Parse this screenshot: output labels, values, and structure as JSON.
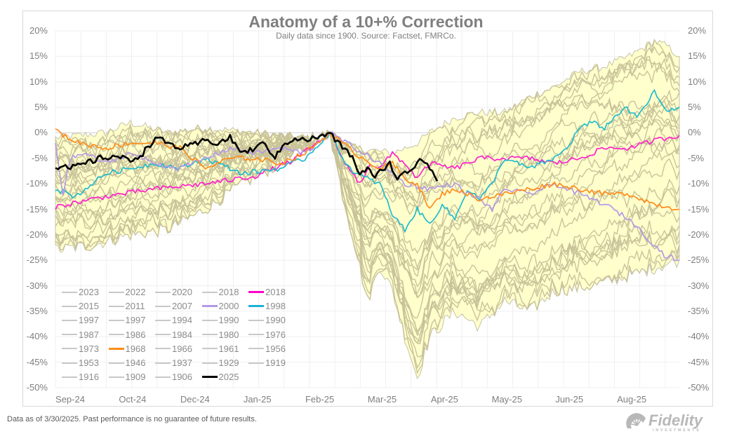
{
  "chart_data": {
    "type": "line",
    "title": "Anatomy of a 10+% Correction",
    "subtitle": "Daily data since 1900.  Source: Factset, FMRCo.",
    "footer": "Data as of 3/30/2025. Past performance is no guarantee of future results.",
    "brand": "Fidelity",
    "brand_sub": "INVESTMENTS",
    "ylim": [
      -50,
      20
    ],
    "y_ticks": [
      "20%",
      "15%",
      "10%",
      "5%",
      "0%",
      "-5%",
      "-10%",
      "-15%",
      "-20%",
      "-25%",
      "-30%",
      "-35%",
      "-40%",
      "-45%",
      "-50%"
    ],
    "x_ticks": [
      "Sep-24",
      "Oct-24",
      "Dec-24",
      "Jan-25",
      "Feb-25",
      "Mar-25",
      "Apr-25",
      "May-25",
      "Jun-25",
      "Aug-25"
    ],
    "x_range_trading_days": [
      0,
      250
    ],
    "peak_day": 110,
    "band_color": "#ffffcc",
    "background_line_color": "#c9c39a",
    "legend": [
      {
        "label": "2023",
        "color": "#c8c8c8"
      },
      {
        "label": "2022",
        "color": "#c8c8c8"
      },
      {
        "label": "2020",
        "color": "#c8c8c8"
      },
      {
        "label": "2018",
        "color": "#c8c8c8"
      },
      {
        "label": "2018",
        "color": "#ff00cc"
      },
      {
        "label": "2015",
        "color": "#c8c8c8"
      },
      {
        "label": "2011",
        "color": "#c8c8c8"
      },
      {
        "label": "2007",
        "color": "#c8c8c8"
      },
      {
        "label": "2000",
        "color": "#b399e6"
      },
      {
        "label": "1998",
        "color": "#1ab2d9"
      },
      {
        "label": "1997",
        "color": "#c8c8c8"
      },
      {
        "label": "1997",
        "color": "#c8c8c8"
      },
      {
        "label": "1994",
        "color": "#c8c8c8"
      },
      {
        "label": "1990",
        "color": "#c8c8c8"
      },
      {
        "label": "1990",
        "color": "#c8c8c8"
      },
      {
        "label": "1987",
        "color": "#c8c8c8"
      },
      {
        "label": "1986",
        "color": "#c8c8c8"
      },
      {
        "label": "1984",
        "color": "#c8c8c8"
      },
      {
        "label": "1980",
        "color": "#c8c8c8"
      },
      {
        "label": "1976",
        "color": "#c8c8c8"
      },
      {
        "label": "1973",
        "color": "#c8c8c8"
      },
      {
        "label": "1968",
        "color": "#ff8c1a"
      },
      {
        "label": "1966",
        "color": "#c8c8c8"
      },
      {
        "label": "1961",
        "color": "#c8c8c8"
      },
      {
        "label": "1956",
        "color": "#c8c8c8"
      },
      {
        "label": "1953",
        "color": "#c8c8c8"
      },
      {
        "label": "1946",
        "color": "#c8c8c8"
      },
      {
        "label": "1937",
        "color": "#c8c8c8"
      },
      {
        "label": "1929",
        "color": "#c8c8c8"
      },
      {
        "label": "1919",
        "color": "#c8c8c8"
      },
      {
        "label": "1916",
        "color": "#c8c8c8"
      },
      {
        "label": "1909",
        "color": "#c8c8c8"
      },
      {
        "label": "1906",
        "color": "#c8c8c8"
      },
      {
        "label": "2025",
        "color": "#000000"
      }
    ],
    "envelope": {
      "upper": [
        [
          0,
          -1
        ],
        [
          20,
          0
        ],
        [
          30,
          2
        ],
        [
          45,
          0
        ],
        [
          60,
          1
        ],
        [
          80,
          0
        ],
        [
          100,
          -1
        ],
        [
          110,
          0
        ],
        [
          120,
          -3
        ],
        [
          135,
          -4
        ],
        [
          145,
          -2
        ],
        [
          150,
          0
        ],
        [
          160,
          3
        ],
        [
          170,
          4
        ],
        [
          180,
          4
        ],
        [
          190,
          7
        ],
        [
          200,
          9
        ],
        [
          210,
          12
        ],
        [
          220,
          13
        ],
        [
          230,
          15
        ],
        [
          240,
          18
        ],
        [
          245,
          17
        ],
        [
          250,
          15
        ]
      ],
      "lower": [
        [
          0,
          -23
        ],
        [
          15,
          -22
        ],
        [
          30,
          -20
        ],
        [
          45,
          -19
        ],
        [
          60,
          -15
        ],
        [
          75,
          -10
        ],
        [
          90,
          -6
        ],
        [
          100,
          -3
        ],
        [
          110,
          0
        ],
        [
          115,
          -12
        ],
        [
          120,
          -22
        ],
        [
          125,
          -33
        ],
        [
          130,
          -26
        ],
        [
          135,
          -31
        ],
        [
          140,
          -40
        ],
        [
          145,
          -48
        ],
        [
          150,
          -40
        ],
        [
          160,
          -35
        ],
        [
          170,
          -38
        ],
        [
          180,
          -33
        ],
        [
          190,
          -35
        ],
        [
          200,
          -31
        ],
        [
          215,
          -30
        ],
        [
          230,
          -28
        ],
        [
          250,
          -25
        ]
      ]
    },
    "series": [
      {
        "name": "2018",
        "color": "#ff22cc",
        "points": [
          [
            0,
            -14.5
          ],
          [
            20,
            -12.5
          ],
          [
            40,
            -11
          ],
          [
            60,
            -10
          ],
          [
            80,
            -8.5
          ],
          [
            95,
            -5.5
          ],
          [
            105,
            -2
          ],
          [
            110,
            0
          ],
          [
            115,
            -5
          ],
          [
            119,
            -8
          ],
          [
            122,
            -10
          ],
          [
            126,
            -6
          ],
          [
            130,
            -7
          ],
          [
            135,
            -4
          ],
          [
            140,
            -6
          ],
          [
            145,
            -9
          ],
          [
            150,
            -6
          ],
          [
            160,
            -7
          ],
          [
            170,
            -5
          ],
          [
            180,
            -5
          ],
          [
            190,
            -5
          ],
          [
            200,
            -6
          ],
          [
            210,
            -5
          ],
          [
            220,
            -3
          ],
          [
            230,
            -3
          ],
          [
            240,
            -1.5
          ],
          [
            250,
            -0.5
          ]
        ]
      },
      {
        "name": "1998",
        "color": "#22bbcc",
        "points": [
          [
            0,
            -11
          ],
          [
            8,
            -12.5
          ],
          [
            12,
            -11
          ],
          [
            20,
            -8
          ],
          [
            30,
            -7
          ],
          [
            40,
            -6
          ],
          [
            50,
            -7
          ],
          [
            60,
            -5
          ],
          [
            75,
            -8
          ],
          [
            90,
            -7
          ],
          [
            100,
            -5
          ],
          [
            108,
            -1
          ],
          [
            110,
            0
          ],
          [
            115,
            -5
          ],
          [
            120,
            -8
          ],
          [
            125,
            -9
          ],
          [
            130,
            -10
          ],
          [
            135,
            -16
          ],
          [
            140,
            -19
          ],
          [
            145,
            -15
          ],
          [
            150,
            -18
          ],
          [
            155,
            -14
          ],
          [
            160,
            -17
          ],
          [
            165,
            -11
          ],
          [
            170,
            -13
          ],
          [
            175,
            -10
          ],
          [
            180,
            -5
          ],
          [
            190,
            -7
          ],
          [
            200,
            -5
          ],
          [
            205,
            -3
          ],
          [
            210,
            1
          ],
          [
            215,
            2
          ],
          [
            220,
            1
          ],
          [
            228,
            5
          ],
          [
            233,
            3
          ],
          [
            240,
            8
          ],
          [
            245,
            4
          ],
          [
            250,
            5
          ]
        ]
      },
      {
        "name": "2000",
        "color": "#b399e6",
        "points": [
          [
            0,
            -2
          ],
          [
            3,
            -12
          ],
          [
            6,
            -5
          ],
          [
            12,
            -4
          ],
          [
            20,
            -6
          ],
          [
            30,
            -4
          ],
          [
            40,
            -6
          ],
          [
            50,
            -7
          ],
          [
            60,
            -5
          ],
          [
            70,
            -3
          ],
          [
            80,
            -4
          ],
          [
            90,
            -3
          ],
          [
            100,
            -4
          ],
          [
            110,
            0
          ],
          [
            120,
            -3
          ],
          [
            130,
            -6
          ],
          [
            140,
            -10
          ],
          [
            150,
            -11
          ],
          [
            160,
            -10
          ],
          [
            165,
            -12
          ],
          [
            170,
            -13
          ],
          [
            175,
            -15
          ],
          [
            180,
            -11
          ],
          [
            190,
            -12
          ],
          [
            200,
            -10
          ],
          [
            210,
            -12
          ],
          [
            220,
            -14
          ],
          [
            230,
            -17
          ],
          [
            238,
            -21
          ],
          [
            244,
            -24
          ],
          [
            250,
            -25
          ]
        ]
      },
      {
        "name": "1968",
        "color": "#ff8c1a",
        "points": [
          [
            0,
            0.5
          ],
          [
            5,
            -1
          ],
          [
            10,
            -2
          ],
          [
            20,
            -3
          ],
          [
            30,
            -2
          ],
          [
            40,
            -2
          ],
          [
            50,
            -3
          ],
          [
            60,
            -7
          ],
          [
            70,
            -5
          ],
          [
            80,
            -5
          ],
          [
            90,
            -6
          ],
          [
            100,
            -4
          ],
          [
            110,
            0
          ],
          [
            120,
            -4
          ],
          [
            130,
            -7
          ],
          [
            135,
            -6
          ],
          [
            140,
            -9
          ],
          [
            145,
            -10
          ],
          [
            150,
            -15
          ],
          [
            155,
            -12
          ],
          [
            160,
            -11
          ],
          [
            170,
            -13
          ],
          [
            180,
            -12
          ],
          [
            190,
            -11
          ],
          [
            200,
            -10
          ],
          [
            210,
            -11
          ],
          [
            220,
            -12
          ],
          [
            230,
            -12
          ],
          [
            240,
            -14
          ],
          [
            250,
            -15
          ]
        ]
      },
      {
        "name": "2025",
        "color": "#000000",
        "points": [
          [
            0,
            -6.5
          ],
          [
            6,
            -7
          ],
          [
            12,
            -6
          ],
          [
            18,
            -5
          ],
          [
            24,
            -4.5
          ],
          [
            30,
            -5.5
          ],
          [
            35,
            -4
          ],
          [
            40,
            -1
          ],
          [
            45,
            -2
          ],
          [
            50,
            -3
          ],
          [
            55,
            -2.5
          ],
          [
            60,
            -1.5
          ],
          [
            65,
            -2
          ],
          [
            70,
            -1
          ],
          [
            75,
            -4
          ],
          [
            80,
            -3
          ],
          [
            84,
            -2
          ],
          [
            88,
            -5
          ],
          [
            92,
            -2
          ],
          [
            96,
            -1
          ],
          [
            100,
            -1.5
          ],
          [
            104,
            -1
          ],
          [
            108,
            -0.5
          ],
          [
            110,
            0
          ],
          [
            113,
            -2
          ],
          [
            116,
            -3
          ],
          [
            119,
            -5
          ],
          [
            122,
            -8
          ],
          [
            125,
            -7
          ],
          [
            128,
            -9
          ],
          [
            131,
            -7
          ],
          [
            134,
            -6
          ],
          [
            137,
            -9
          ],
          [
            140,
            -8
          ],
          [
            143,
            -7
          ],
          [
            146,
            -5
          ],
          [
            149,
            -6
          ],
          [
            152,
            -8
          ],
          [
            153,
            -9.5
          ]
        ]
      }
    ]
  }
}
